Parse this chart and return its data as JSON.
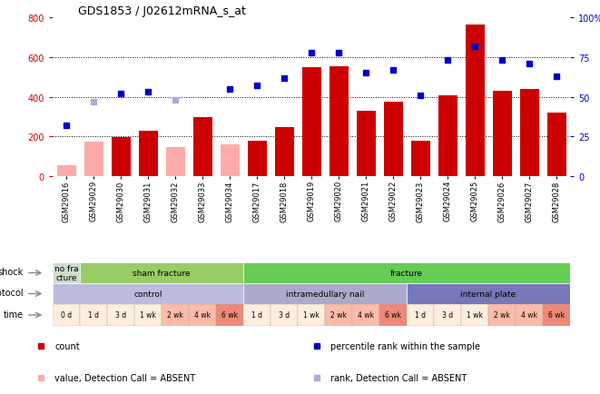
{
  "title": "GDS1853 / J02612mRNA_s_at",
  "samples": [
    "GSM29016",
    "GSM29029",
    "GSM29030",
    "GSM29031",
    "GSM29032",
    "GSM29033",
    "GSM29034",
    "GSM29017",
    "GSM29018",
    "GSM29019",
    "GSM29020",
    "GSM29021",
    "GSM29022",
    "GSM29023",
    "GSM29024",
    "GSM29025",
    "GSM29026",
    "GSM29027",
    "GSM29028"
  ],
  "counts": [
    55,
    175,
    195,
    228,
    148,
    298,
    160,
    178,
    248,
    548,
    555,
    330,
    375,
    178,
    408,
    762,
    430,
    438,
    320
  ],
  "absent_mask": [
    true,
    true,
    false,
    false,
    true,
    false,
    true,
    false,
    false,
    false,
    false,
    false,
    false,
    false,
    false,
    false,
    false,
    false,
    false
  ],
  "percentile_ranks": [
    32,
    47,
    52,
    53,
    48,
    null,
    55,
    57,
    62,
    78,
    78,
    65,
    67,
    51,
    73,
    82,
    73,
    71,
    63
  ],
  "rank_absent_mask": [
    false,
    true,
    false,
    false,
    true,
    true,
    false,
    false,
    false,
    false,
    false,
    false,
    false,
    false,
    false,
    false,
    false,
    false,
    false
  ],
  "bar_color_present": "#cc0000",
  "bar_color_absent": "#ffaaaa",
  "dot_color_present": "#0000cc",
  "dot_color_absent": "#aaaadd",
  "shock_groups": [
    {
      "label": "no fra\ncture",
      "start": 0,
      "end": 1,
      "color": "#ccddcc"
    },
    {
      "label": "sham fracture",
      "start": 1,
      "end": 7,
      "color": "#99cc66"
    },
    {
      "label": "fracture",
      "start": 7,
      "end": 19,
      "color": "#66cc55"
    }
  ],
  "protocol_groups": [
    {
      "label": "control",
      "start": 0,
      "end": 7,
      "color": "#bbbbdd"
    },
    {
      "label": "intramedullary nail",
      "start": 7,
      "end": 13,
      "color": "#aaaacc"
    },
    {
      "label": "internal plate",
      "start": 13,
      "end": 19,
      "color": "#7777bb"
    }
  ],
  "time_labels": [
    "0 d",
    "1 d",
    "3 d",
    "1 wk",
    "2 wk",
    "4 wk",
    "6 wk",
    "1 d",
    "3 d",
    "1 wk",
    "2 wk",
    "4 wk",
    "6 wk",
    "1 d",
    "3 d",
    "1 wk",
    "2 wk",
    "4 wk",
    "6 wk"
  ],
  "time_colors": [
    "#ffeedd",
    "#ffeedd",
    "#ffeedd",
    "#ffeedd",
    "#ffbbaa",
    "#ffbbaa",
    "#ee8877",
    "#ffeedd",
    "#ffeedd",
    "#ffeedd",
    "#ffbbaa",
    "#ffbbaa",
    "#ee8877",
    "#ffeedd",
    "#ffeedd",
    "#ffeedd",
    "#ffbbaa",
    "#ffbbaa",
    "#ee8877"
  ],
  "legend_items": [
    {
      "color": "#cc0000",
      "label": "count"
    },
    {
      "color": "#0000cc",
      "label": "percentile rank within the sample"
    },
    {
      "color": "#ffaaaa",
      "label": "value, Detection Call = ABSENT"
    },
    {
      "color": "#aaaadd",
      "label": "rank, Detection Call = ABSENT"
    }
  ]
}
